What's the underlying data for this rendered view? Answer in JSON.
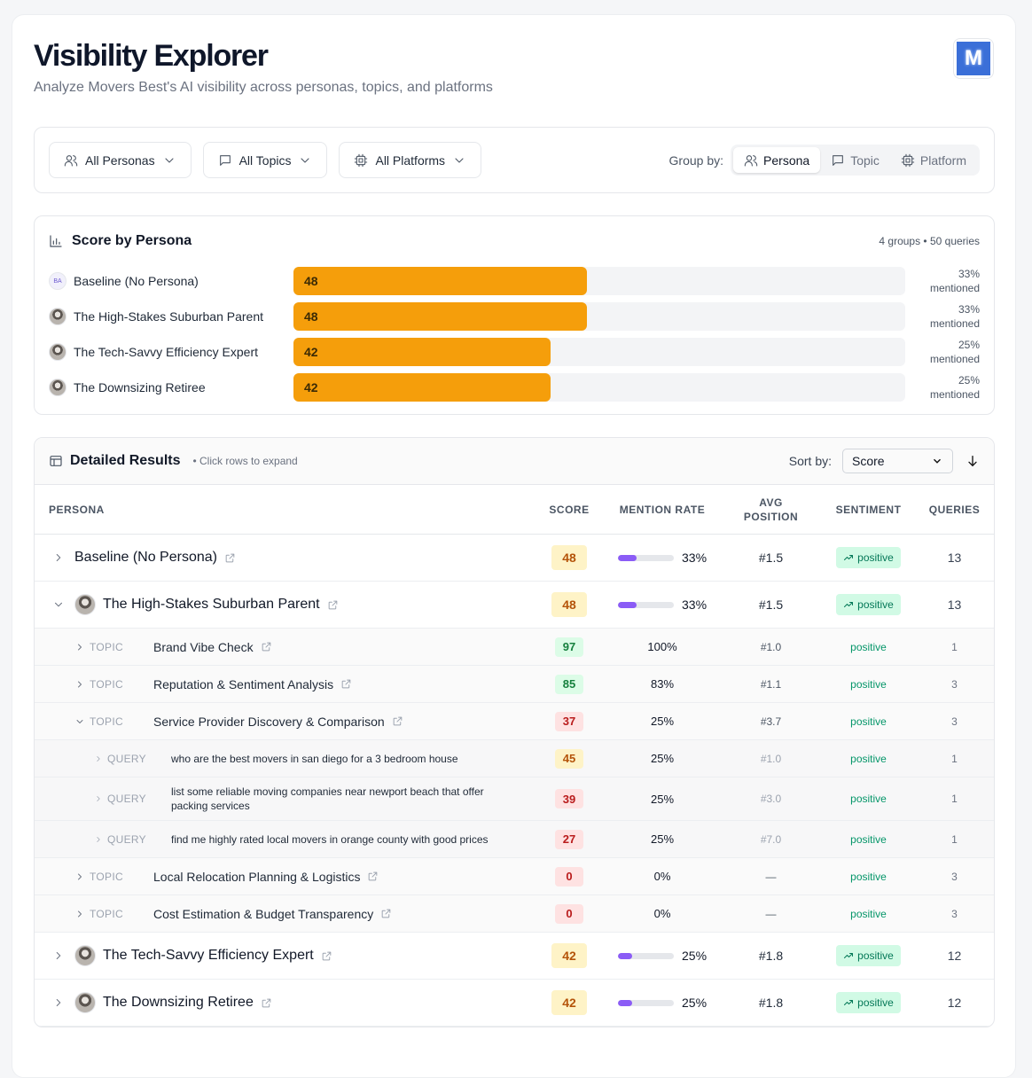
{
  "header": {
    "title": "Visibility Explorer",
    "subtitle": "Analyze Movers Best's AI visibility across personas, topics, and platforms",
    "logo": "M"
  },
  "filters": {
    "personas": "All Personas",
    "topics": "All Topics",
    "platforms": "All Platforms",
    "group_by_label": "Group by:",
    "group_by_options": [
      "Persona",
      "Topic",
      "Platform"
    ],
    "group_by_active": 0
  },
  "score_chart": {
    "title": "Score by Persona",
    "summary": "4 groups • 50 queries",
    "xlim": [
      0,
      100
    ],
    "mentioned_word": "mentioned",
    "rows": [
      {
        "avatar_initials": "BA",
        "name": "Baseline (No Persona)",
        "score": 48,
        "mention_rate": "33%"
      },
      {
        "has_avatar": true,
        "name": "The High-Stakes Suburban Parent",
        "score": 48,
        "mention_rate": "33%"
      },
      {
        "has_avatar": true,
        "name": "The Tech-Savvy Efficiency Expert",
        "score": 42,
        "mention_rate": "25%"
      },
      {
        "has_avatar": true,
        "name": "The Downsizing Retiree",
        "score": 42,
        "mention_rate": "25%"
      }
    ]
  },
  "results": {
    "title": "Detailed Results",
    "hint": "• Click rows to expand",
    "sort_label": "Sort by:",
    "sort_value": "Score",
    "columns": [
      "PERSONA",
      "SCORE",
      "MENTION RATE",
      "AVG POSITION",
      "SENTIMENT",
      "QUERIES"
    ],
    "rows": [
      {
        "level": "persona",
        "name": "Baseline (No Persona)",
        "score": 48,
        "mention_rate": "33%",
        "avg_position": "#1.5",
        "sentiment": "positive",
        "queries": 13,
        "expanded": false
      },
      {
        "level": "persona",
        "has_avatar": true,
        "name": "The High-Stakes Suburban Parent",
        "score": 48,
        "mention_rate": "33%",
        "avg_position": "#1.5",
        "sentiment": "positive",
        "queries": 13,
        "expanded": true
      },
      {
        "level": "topic",
        "kind": "TOPIC",
        "name": "Brand Vibe Check",
        "score": 97,
        "mention_rate": "100%",
        "avg_position": "#1.0",
        "sentiment": "positive",
        "queries": 1,
        "expanded": false
      },
      {
        "level": "topic",
        "kind": "TOPIC",
        "name": "Reputation & Sentiment Analysis",
        "score": 85,
        "mention_rate": "83%",
        "avg_position": "#1.1",
        "sentiment": "positive",
        "queries": 3,
        "expanded": false
      },
      {
        "level": "topic",
        "kind": "TOPIC",
        "name": "Service Provider Discovery & Comparison",
        "score": 37,
        "mention_rate": "25%",
        "avg_position": "#3.7",
        "sentiment": "positive",
        "queries": 3,
        "expanded": true
      },
      {
        "level": "query",
        "kind": "QUERY",
        "name": "who are the best movers in san diego for a 3 bedroom house",
        "score": 45,
        "mention_rate": "25%",
        "avg_position": "#1.0",
        "sentiment": "positive",
        "queries": 1,
        "expanded": false
      },
      {
        "level": "query",
        "kind": "QUERY",
        "name": "list some reliable moving companies near newport beach that offer packing services",
        "score": 39,
        "mention_rate": "25%",
        "avg_position": "#3.0",
        "sentiment": "positive",
        "queries": 1,
        "expanded": false
      },
      {
        "level": "query",
        "kind": "QUERY",
        "name": "find me highly rated local movers in orange county with good prices",
        "score": 27,
        "mention_rate": "25%",
        "avg_position": "#7.0",
        "sentiment": "positive",
        "queries": 1,
        "expanded": false
      },
      {
        "level": "topic",
        "kind": "TOPIC",
        "name": "Local Relocation Planning & Logistics",
        "score": 0,
        "mention_rate": "0%",
        "avg_position": "—",
        "sentiment": "positive",
        "queries": 3,
        "expanded": false
      },
      {
        "level": "topic",
        "kind": "TOPIC",
        "name": "Cost Estimation & Budget Transparency",
        "score": 0,
        "mention_rate": "0%",
        "avg_position": "—",
        "sentiment": "positive",
        "queries": 3,
        "expanded": false
      },
      {
        "level": "persona",
        "has_avatar": true,
        "name": "The Tech-Savvy Efficiency Expert",
        "score": 42,
        "mention_rate": "25%",
        "avg_position": "#1.8",
        "sentiment": "positive",
        "queries": 12,
        "expanded": false
      },
      {
        "level": "persona",
        "has_avatar": true,
        "name": "The Downsizing Retiree",
        "score": 42,
        "mention_rate": "25%",
        "avg_position": "#1.8",
        "sentiment": "positive",
        "queries": 12,
        "expanded": false
      }
    ]
  }
}
